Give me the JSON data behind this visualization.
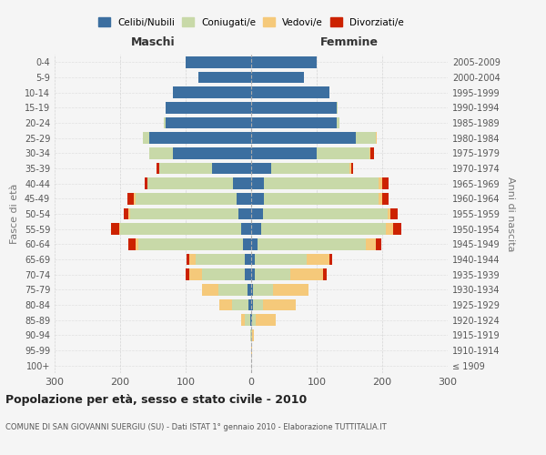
{
  "age_groups": [
    "100+",
    "95-99",
    "90-94",
    "85-89",
    "80-84",
    "75-79",
    "70-74",
    "65-69",
    "60-64",
    "55-59",
    "50-54",
    "45-49",
    "40-44",
    "35-39",
    "30-34",
    "25-29",
    "20-24",
    "15-19",
    "10-14",
    "5-9",
    "0-4"
  ],
  "birth_years": [
    "≤ 1909",
    "1910-1914",
    "1915-1919",
    "1920-1924",
    "1925-1929",
    "1930-1934",
    "1935-1939",
    "1940-1944",
    "1945-1949",
    "1950-1954",
    "1955-1959",
    "1960-1964",
    "1965-1969",
    "1970-1974",
    "1975-1979",
    "1980-1984",
    "1985-1989",
    "1990-1994",
    "1995-1999",
    "2000-2004",
    "2005-2009"
  ],
  "maschi": {
    "celibi": [
      0,
      0,
      0,
      2,
      4,
      5,
      10,
      10,
      12,
      15,
      20,
      22,
      28,
      60,
      120,
      155,
      130,
      130,
      120,
      80,
      100
    ],
    "coniugati": [
      0,
      0,
      1,
      8,
      25,
      45,
      65,
      75,
      160,
      185,
      165,
      155,
      130,
      80,
      35,
      10,
      3,
      1,
      0,
      0,
      0
    ],
    "vedovi": [
      0,
      0,
      0,
      5,
      20,
      25,
      20,
      10,
      5,
      2,
      2,
      2,
      0,
      0,
      0,
      0,
      0,
      0,
      0,
      0,
      0
    ],
    "divorziati": [
      0,
      0,
      0,
      0,
      0,
      0,
      5,
      3,
      10,
      12,
      8,
      10,
      5,
      5,
      0,
      0,
      0,
      0,
      0,
      0,
      0
    ]
  },
  "femmine": {
    "nubili": [
      0,
      0,
      0,
      2,
      3,
      3,
      5,
      5,
      10,
      15,
      18,
      20,
      20,
      30,
      100,
      160,
      130,
      130,
      120,
      80,
      100
    ],
    "coniugate": [
      0,
      0,
      1,
      5,
      15,
      30,
      55,
      80,
      165,
      190,
      190,
      175,
      175,
      120,
      80,
      30,
      5,
      2,
      0,
      0,
      0
    ],
    "vedove": [
      0,
      1,
      3,
      30,
      50,
      55,
      50,
      35,
      15,
      12,
      5,
      5,
      5,
      3,
      2,
      2,
      0,
      0,
      0,
      0,
      0
    ],
    "divorziate": [
      0,
      0,
      0,
      0,
      0,
      0,
      5,
      3,
      8,
      12,
      10,
      10,
      10,
      3,
      5,
      0,
      0,
      0,
      0,
      0,
      0
    ]
  },
  "colors": {
    "celibi_nubili": "#3c6fa0",
    "coniugati": "#c8d9a8",
    "vedovi": "#f5c97a",
    "divorziati": "#cc2200"
  },
  "xlim": 300,
  "title": "Popolazione per età, sesso e stato civile - 2010",
  "subtitle": "COMUNE DI SAN GIOVANNI SUERGIU (SU) - Dati ISTAT 1° gennaio 2010 - Elaborazione TUTTITALIA.IT",
  "ylabel_left": "Fasce di età",
  "ylabel_right": "Anni di nascita",
  "xlabel_left": "Maschi",
  "xlabel_right": "Femmine",
  "legend_labels": [
    "Celibi/Nubili",
    "Coniugati/e",
    "Vedovi/e",
    "Divorziati/e"
  ],
  "bg_color": "#f5f5f5",
  "grid_color": "#cccccc"
}
